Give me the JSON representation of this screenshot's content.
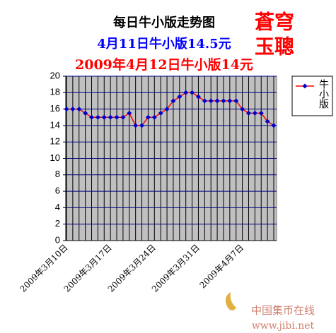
{
  "chart_data": {
    "type": "line",
    "title": "每日牛小版走势图",
    "subtitle": "4月11日牛小版14.5元",
    "subtitle2": "2009年4月12日牛小版14元",
    "stamp": [
      "蒼穹",
      "玉聰"
    ],
    "watermark": [
      "中国集币在线",
      "www.jibi.net"
    ],
    "categories": [
      "2009年3月10日",
      null,
      null,
      null,
      null,
      null,
      null,
      "2009年3月17日",
      null,
      null,
      null,
      null,
      null,
      null,
      "2009年3月24日",
      null,
      null,
      null,
      null,
      null,
      null,
      "2009年3月31日",
      null,
      null,
      null,
      null,
      null,
      null,
      "2009年4月7日",
      null,
      null,
      null,
      null,
      null
    ],
    "series": [
      {
        "name": "牛小版",
        "color": "#ff0000",
        "marker_color": "#0000cc",
        "values": [
          16,
          16,
          16,
          15.5,
          15,
          15,
          15,
          15,
          15,
          15,
          15.5,
          14,
          14,
          15,
          15,
          15.5,
          16,
          17,
          17.5,
          18,
          18,
          17.5,
          17,
          17,
          17,
          17,
          17,
          17,
          16,
          15.5,
          15.5,
          15.5,
          14.5,
          14
        ]
      }
    ],
    "ylim": [
      0,
      20
    ],
    "yticks": [
      0,
      2,
      4,
      6,
      8,
      10,
      12,
      14,
      16,
      18,
      20
    ],
    "grid": true,
    "legend": "right"
  }
}
